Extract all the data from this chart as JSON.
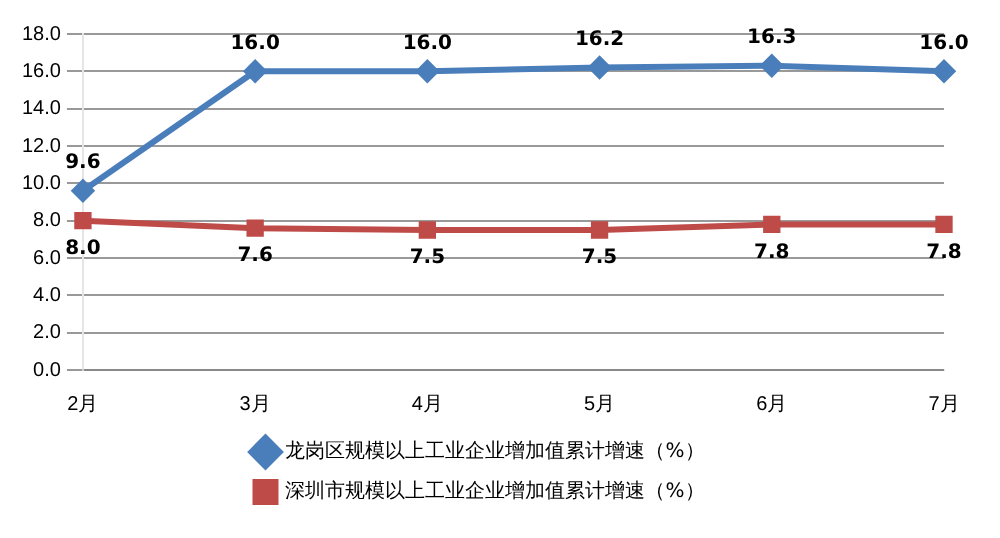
{
  "chart_data": {
    "type": "line",
    "categories": [
      "2月",
      "3月",
      "4月",
      "5月",
      "6月",
      "7月"
    ],
    "series": [
      {
        "name": "龙岗区规模以上工业企业增加值累计增速（%）",
        "color": "#4a7ebb",
        "marker": "diamond",
        "values": [
          9.6,
          16.0,
          16.0,
          16.2,
          16.3,
          16.0
        ],
        "value_labels": [
          "9.6",
          "16.0",
          "16.0",
          "16.2",
          "16.3",
          "16.0"
        ]
      },
      {
        "name": "深圳市规模以上工业企业增加值累计增速（%）",
        "color": "#be4b48",
        "marker": "square",
        "values": [
          8.0,
          7.6,
          7.5,
          7.5,
          7.8,
          7.8
        ],
        "value_labels": [
          "8.0",
          "7.6",
          "7.5",
          "7.5",
          "7.8",
          "7.8"
        ]
      }
    ],
    "ylim": [
      0,
      18
    ],
    "yticks": [
      {
        "value": 0,
        "label": "0.0"
      },
      {
        "value": 2,
        "label": "2.0"
      },
      {
        "value": 4,
        "label": "4.0"
      },
      {
        "value": 6,
        "label": "6.0"
      },
      {
        "value": 8,
        "label": "8.0"
      },
      {
        "value": 10,
        "label": "10.0"
      },
      {
        "value": 12,
        "label": "12.0"
      },
      {
        "value": 14,
        "label": "14.0"
      },
      {
        "value": 16,
        "label": "16.0"
      },
      {
        "value": 18,
        "label": "18.0"
      }
    ],
    "grid": "y",
    "legend": "bottom"
  }
}
